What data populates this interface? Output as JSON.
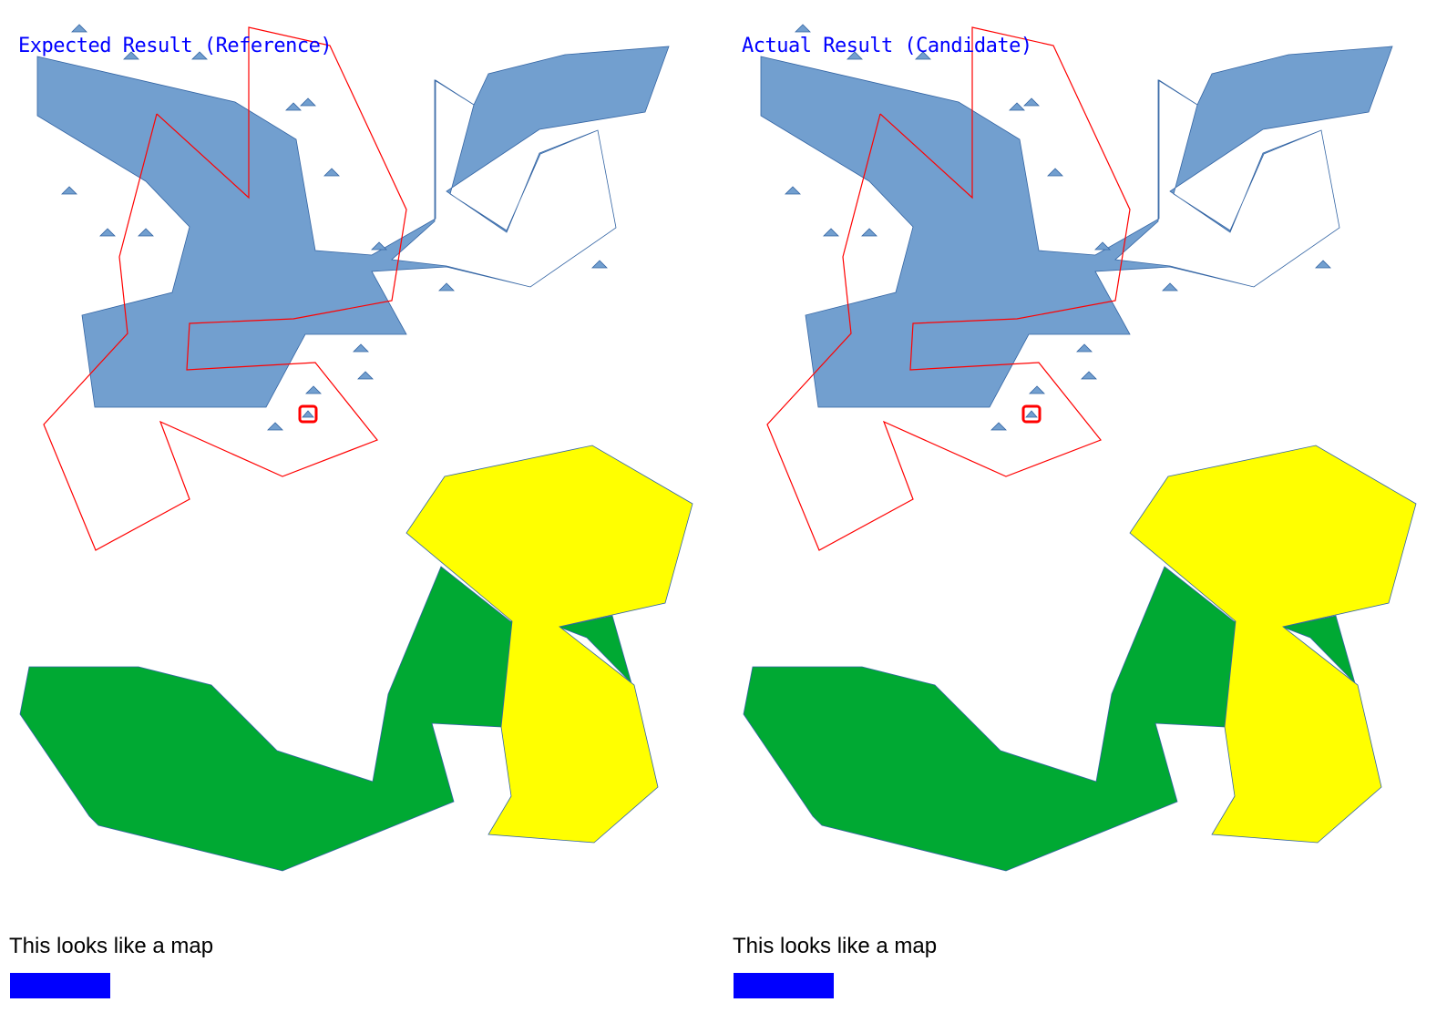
{
  "colors": {
    "title_text": "#0000ff",
    "region_blue": "#729fcf",
    "region_blue_stroke": "#3465a4",
    "region_green": "#00a933",
    "region_yellow": "#ffff00",
    "outline_red": "#ff0000",
    "marker_fill": "#729fcf",
    "marker_stroke": "#3465a4",
    "highlight_stroke": "#ff0000",
    "legend_swatch": "#0000ff"
  },
  "panels": [
    {
      "title": "Expected Result (Reference)",
      "caption": "This looks like a map"
    },
    {
      "title": "Actual Result (Candidate)",
      "caption": "This looks like a map"
    }
  ],
  "map": {
    "marker_shape": "triangle",
    "highlighted_marker": "boxed-triangle"
  }
}
